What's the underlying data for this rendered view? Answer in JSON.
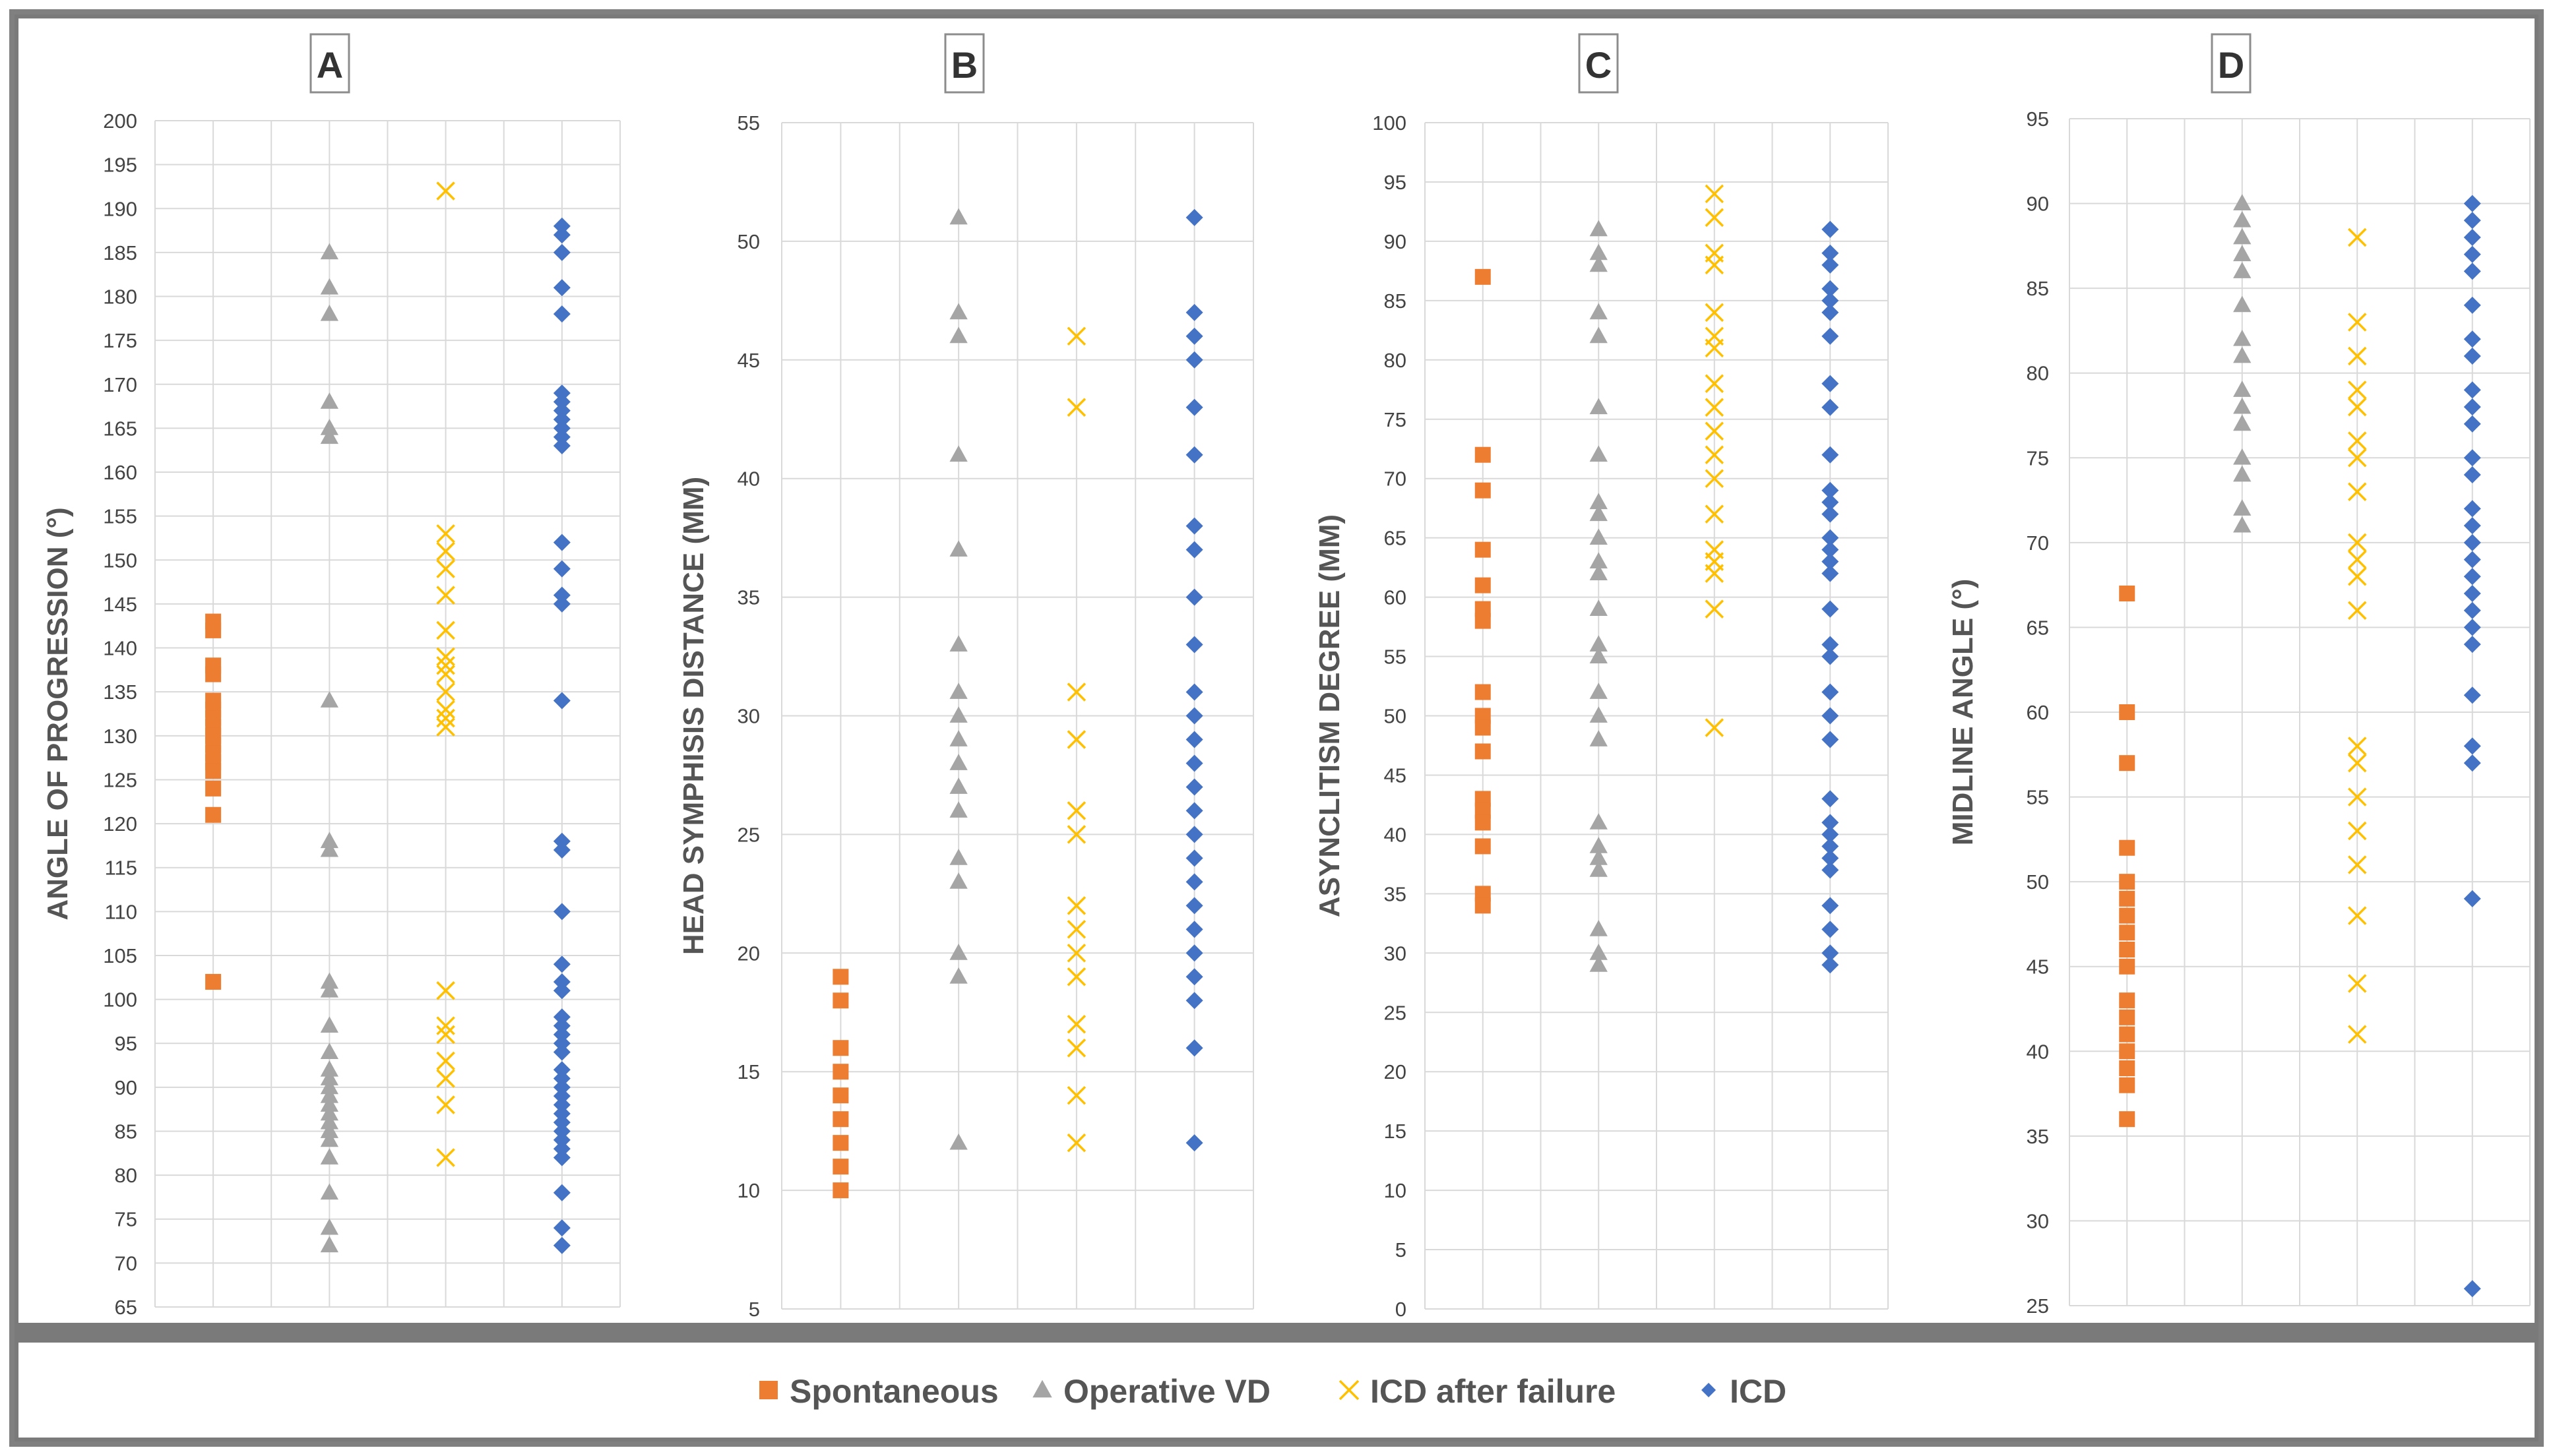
{
  "colors": {
    "spontaneous": "#ED7D31",
    "operative_vd": "#A5A5A5",
    "icd_after_failure": "#FFC000",
    "icd": "#4472C4",
    "grid": "#d9d9d9",
    "frame": "#808080"
  },
  "legend": [
    {
      "label": "Spontaneous",
      "marker": "square",
      "color": "#ED7D31"
    },
    {
      "label": "Operative VD",
      "marker": "triangle",
      "color": "#A5A5A5"
    },
    {
      "label": "ICD after failure",
      "marker": "x",
      "color": "#FFC000"
    },
    {
      "label": "ICD",
      "marker": "diamond",
      "color": "#4472C4"
    }
  ],
  "chart_data": [
    {
      "type": "scatter",
      "panel_label": "A",
      "title": "",
      "xlabel": "",
      "ylabel": "ANGLE OF PROGRESSION (°)",
      "ylim": [
        65,
        200
      ],
      "ystep": 5,
      "grid": true,
      "categories": [
        "Spontaneous",
        "Operative VD",
        "ICD after failure",
        "ICD"
      ],
      "series": [
        {
          "name": "Spontaneous",
          "marker": "square",
          "values": [
            143,
            142,
            138,
            137,
            134,
            133,
            132,
            131,
            130,
            129,
            128,
            127,
            126,
            124,
            121,
            102
          ]
        },
        {
          "name": "Operative VD",
          "marker": "triangle",
          "values": [
            185,
            181,
            178,
            168,
            165,
            164,
            134,
            118,
            117,
            102,
            101,
            97,
            94,
            92,
            91,
            90,
            89,
            88,
            87,
            86,
            85,
            84,
            82,
            78,
            74,
            72
          ]
        },
        {
          "name": "ICD after failure",
          "marker": "x",
          "values": [
            192,
            153,
            151,
            149,
            146,
            142,
            139,
            138,
            137,
            135,
            133,
            132,
            131,
            101,
            97,
            96,
            93,
            91,
            88,
            82
          ]
        },
        {
          "name": "ICD",
          "marker": "diamond",
          "values": [
            188,
            187,
            185,
            181,
            178,
            169,
            168,
            167,
            166,
            165,
            164,
            163,
            152,
            149,
            146,
            145,
            134,
            118,
            117,
            110,
            104,
            102,
            101,
            98,
            97,
            96,
            95,
            94,
            92,
            91,
            90,
            89,
            88,
            87,
            86,
            85,
            84,
            83,
            82,
            78,
            74,
            72
          ]
        }
      ]
    },
    {
      "type": "scatter",
      "panel_label": "B",
      "title": "",
      "xlabel": "",
      "ylabel": "HEAD SYMPHISIS DISTANCE (MM)",
      "ylim": [
        5,
        55
      ],
      "ystep": 5,
      "grid": true,
      "categories": [
        "Spontaneous",
        "Operative VD",
        "ICD after failure",
        "ICD"
      ],
      "series": [
        {
          "name": "Spontaneous",
          "marker": "square",
          "values": [
            19,
            18,
            16,
            15,
            14,
            13,
            12,
            11,
            10
          ]
        },
        {
          "name": "Operative VD",
          "marker": "triangle",
          "values": [
            51,
            47,
            46,
            41,
            37,
            33,
            31,
            30,
            29,
            28,
            27,
            26,
            24,
            23,
            20,
            19,
            12
          ]
        },
        {
          "name": "ICD after failure",
          "marker": "x",
          "values": [
            46,
            43,
            31,
            29,
            26,
            25,
            22,
            21,
            20,
            19,
            17,
            16,
            14,
            12
          ]
        },
        {
          "name": "ICD",
          "marker": "diamond",
          "values": [
            51,
            47,
            46,
            45,
            43,
            41,
            38,
            37,
            35,
            33,
            31,
            30,
            29,
            28,
            27,
            26,
            25,
            24,
            23,
            22,
            21,
            20,
            19,
            18,
            16,
            12
          ]
        }
      ]
    },
    {
      "type": "scatter",
      "panel_label": "C",
      "title": "",
      "xlabel": "",
      "ylabel": "ASYNCLITISM DEGREE (MM)",
      "ylim": [
        0,
        100
      ],
      "ystep": 5,
      "grid": true,
      "categories": [
        "Spontaneous",
        "Operative VD",
        "ICD after failure",
        "ICD"
      ],
      "series": [
        {
          "name": "Spontaneous",
          "marker": "square",
          "values": [
            87,
            72,
            69,
            64,
            61,
            59,
            58,
            52,
            50,
            49,
            47,
            43,
            42,
            41,
            39,
            35,
            34
          ]
        },
        {
          "name": "Operative VD",
          "marker": "triangle",
          "values": [
            91,
            89,
            88,
            84,
            82,
            76,
            72,
            68,
            67,
            65,
            63,
            62,
            59,
            56,
            55,
            52,
            50,
            48,
            41,
            39,
            38,
            37,
            32,
            30,
            29
          ]
        },
        {
          "name": "ICD after failure",
          "marker": "x",
          "values": [
            94,
            92,
            89,
            88,
            84,
            82,
            81,
            78,
            76,
            74,
            72,
            70,
            67,
            64,
            63,
            62,
            59,
            49
          ]
        },
        {
          "name": "ICD",
          "marker": "diamond",
          "values": [
            91,
            89,
            88,
            86,
            85,
            84,
            82,
            78,
            76,
            72,
            69,
            68,
            67,
            65,
            64,
            63,
            62,
            59,
            56,
            55,
            52,
            50,
            48,
            43,
            41,
            40,
            39,
            38,
            37,
            34,
            32,
            30,
            29
          ]
        }
      ]
    },
    {
      "type": "scatter",
      "panel_label": "D",
      "title": "",
      "xlabel": "",
      "ylabel": "MIDLINE ANGLE (°)",
      "ylim": [
        25,
        95
      ],
      "ystep": 5,
      "grid": true,
      "categories": [
        "Spontaneous",
        "Operative VD",
        "ICD after failure",
        "ICD"
      ],
      "series": [
        {
          "name": "Spontaneous",
          "marker": "square",
          "values": [
            67,
            60,
            57,
            52,
            50,
            49,
            48,
            47,
            46,
            45,
            43,
            42,
            41,
            40,
            39,
            38,
            36
          ]
        },
        {
          "name": "Operative VD",
          "marker": "triangle",
          "values": [
            90,
            89,
            88,
            87,
            86,
            84,
            82,
            81,
            79,
            78,
            77,
            75,
            74,
            72,
            71
          ]
        },
        {
          "name": "ICD after failure",
          "marker": "x",
          "values": [
            88,
            83,
            81,
            79,
            78,
            76,
            75,
            73,
            70,
            69,
            68,
            66,
            58,
            57,
            55,
            53,
            51,
            48,
            44,
            41
          ]
        },
        {
          "name": "ICD",
          "marker": "diamond",
          "values": [
            90,
            89,
            88,
            87,
            86,
            84,
            82,
            81,
            79,
            78,
            77,
            75,
            74,
            72,
            71,
            70,
            69,
            68,
            67,
            66,
            65,
            64,
            61,
            58,
            57,
            49,
            26
          ]
        }
      ]
    }
  ]
}
